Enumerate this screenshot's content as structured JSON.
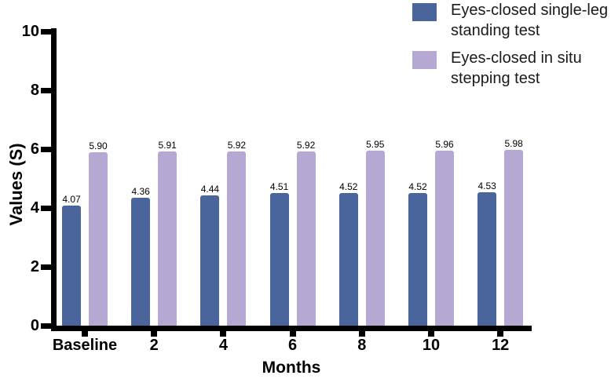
{
  "chart_data": {
    "type": "bar",
    "title": "",
    "categories": [
      "Baseline",
      "2",
      "4",
      "6",
      "8",
      "10",
      "12"
    ],
    "series": [
      {
        "name": "Eyes-closed single-leg standing test",
        "color": "#4a649c",
        "values": [
          4.07,
          4.36,
          4.44,
          4.51,
          4.52,
          4.52,
          4.53
        ]
      },
      {
        "name": "Eyes-closed in situ stepping test",
        "color": "#b5a9d4",
        "values": [
          5.9,
          5.91,
          5.92,
          5.92,
          5.95,
          5.96,
          5.98
        ]
      }
    ],
    "xlabel": "Months",
    "ylabel": "Values (S)",
    "ylim": [
      0,
      10
    ],
    "yticks": [
      0,
      2,
      4,
      6,
      8,
      10
    ],
    "grid": false,
    "legend_position": "top-right",
    "bar_value_labels": true,
    "value_label_decimals": 2,
    "axis_color": "#000000",
    "text_color": "#000000",
    "background": "#ffffff"
  }
}
